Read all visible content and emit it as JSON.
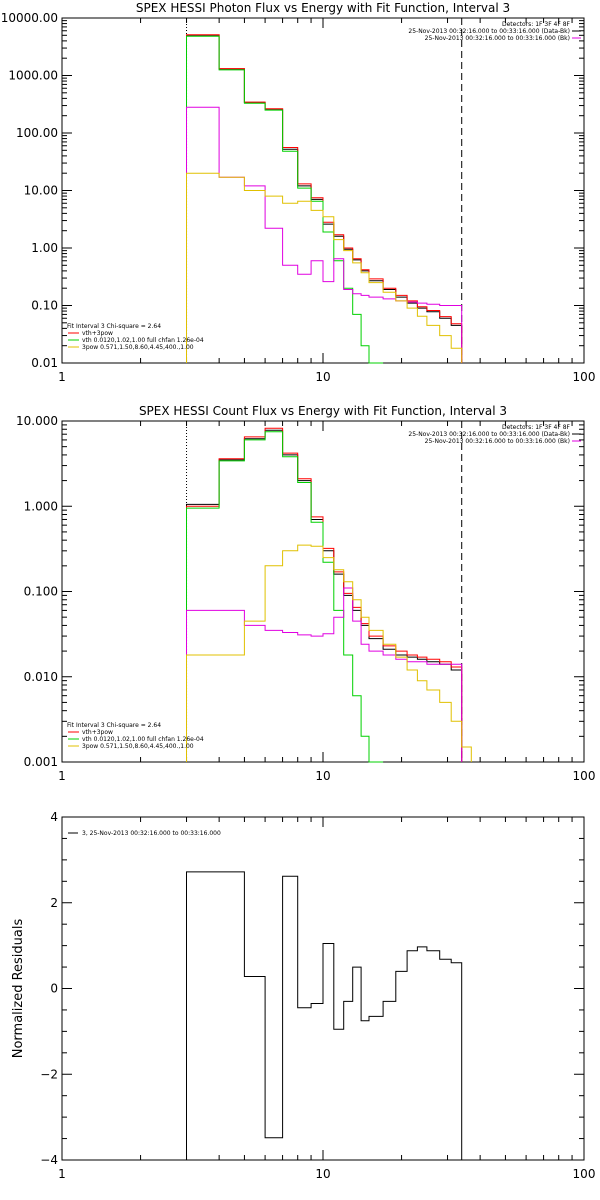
{
  "chart_data": [
    {
      "type": "line",
      "title": "SPEX HESSI Photon Flux vs Energy with Fit Function, Interval 3",
      "xscale": "log",
      "yscale": "log",
      "xlim": [
        1,
        100
      ],
      "ylim": [
        0.01,
        10000
      ],
      "x_ticklabels": [
        "1",
        "10",
        "100"
      ],
      "y_ticklabels": [
        "0.01",
        "0.10",
        "1.00",
        "10.00",
        "100.00",
        "1000.00",
        "10000.00"
      ],
      "legend_topright": [
        "Detectors: 1F 3F 4F 8F",
        "25-Nov-2013 00:32:16.000 to 00:33:16.000 (Data-Bk)",
        "25-Nov-2013 00:32:16.000 to 00:33:16.000 (Bk)"
      ],
      "legend_bottomleft": [
        "Fit Interval 3   Chi-square = 2.64",
        "vth+3pow",
        "vth 0.0120,1.02,1.00  full chfan 1.26e-04",
        "3pow 0.571,1.50,8.60,4.45,400.,1.00"
      ],
      "vlines": [
        {
          "x": 3,
          "style": "dotted"
        },
        {
          "x": 34,
          "style": "dashed"
        }
      ],
      "x_edges": [
        3,
        4,
        5,
        6,
        7,
        8,
        9,
        10,
        11,
        12,
        13,
        14,
        15,
        17,
        19,
        21,
        23,
        25,
        28,
        31,
        34
      ],
      "series": [
        {
          "color": "#000000",
          "values": [
            5000,
            1300,
            340,
            260,
            52,
            12,
            7,
            2.6,
            1.6,
            0.95,
            0.62,
            0.4,
            0.27,
            0.19,
            0.14,
            0.11,
            0.09,
            0.078,
            0.06,
            0.045
          ]
        },
        {
          "color": "#ff0000",
          "values": [
            5100,
            1320,
            345,
            265,
            56,
            13,
            7.5,
            2.8,
            1.7,
            1.0,
            0.65,
            0.42,
            0.29,
            0.2,
            0.15,
            0.12,
            0.095,
            0.082,
            0.064,
            0.048
          ]
        },
        {
          "color": "#00d000",
          "values": [
            4800,
            1250,
            330,
            250,
            48,
            11,
            6.5,
            1.9,
            0.6,
            0.2,
            0.07,
            0.02,
            0.008
          ]
        },
        {
          "color": "#e000e0",
          "values": [
            280,
            17,
            12,
            2.2,
            0.5,
            0.35,
            0.6,
            0.26,
            0.65,
            0.19,
            0.16,
            0.15,
            0.14,
            0.13,
            0.12,
            0.115,
            0.11,
            0.105,
            0.1,
            0.1
          ]
        },
        {
          "color": "#e0c000",
          "values": [
            20,
            17,
            10,
            8,
            6,
            6.5,
            4.5,
            3.5,
            1.4,
            0.9,
            0.55,
            0.37,
            0.25,
            0.17,
            0.12,
            0.09,
            0.065,
            0.045,
            0.03,
            0.018,
            0.01
          ]
        }
      ]
    },
    {
      "type": "line",
      "title": "SPEX HESSI Count Flux vs Energy with Fit Function, Interval 3",
      "xscale": "log",
      "yscale": "log",
      "xlim": [
        1,
        100
      ],
      "ylim": [
        0.001,
        10
      ],
      "x_ticklabels": [
        "1",
        "10",
        "100"
      ],
      "y_ticklabels": [
        "0.001",
        "0.010",
        "0.100",
        "1.000",
        "10.000"
      ],
      "legend_topright": [
        "Detectors: 1F 3F 4F 8F",
        "25-Nov-2013 00:32:16.000 to 00:33:16.000 (Data-Bk)",
        "25-Nov-2013 00:32:16.000 to 00:33:16.000 (Bk)"
      ],
      "legend_bottomleft": [
        "Fit Interval 3   Chi-square = 2.64",
        "vth+3pow",
        "vth 0.0120,1.02,1.00  full chfan 1.26e-04",
        "3pow 0.571,1.50,8.60,4.45,400.,1.00"
      ],
      "vlines": [
        {
          "x": 3,
          "style": "dotted"
        },
        {
          "x": 34,
          "style": "dashed"
        }
      ],
      "x_edges": [
        3,
        4,
        5,
        6,
        7,
        8,
        9,
        10,
        11,
        12,
        13,
        14,
        15,
        17,
        19,
        21,
        23,
        25,
        28,
        31,
        34,
        37
      ],
      "series": [
        {
          "color": "#000000",
          "values": [
            1.05,
            3.5,
            6.2,
            7.8,
            4.0,
            2.0,
            0.7,
            0.3,
            0.16,
            0.09,
            0.06,
            0.04,
            0.028,
            0.021,
            0.018,
            0.017,
            0.016,
            0.015,
            0.014,
            0.012
          ]
        },
        {
          "color": "#ff0000",
          "values": [
            1.0,
            3.6,
            6.5,
            8.2,
            4.2,
            2.1,
            0.75,
            0.32,
            0.17,
            0.095,
            0.065,
            0.042,
            0.03,
            0.023,
            0.02,
            0.018,
            0.017,
            0.016,
            0.015,
            0.013
          ]
        },
        {
          "color": "#00d000",
          "values": [
            0.95,
            3.4,
            6.0,
            7.5,
            3.8,
            1.9,
            0.65,
            0.22,
            0.06,
            0.018,
            0.006,
            0.002,
            0.0008
          ]
        },
        {
          "color": "#e000e0",
          "values": [
            0.06,
            0.06,
            0.04,
            0.035,
            0.033,
            0.031,
            0.03,
            0.032,
            0.05,
            0.11,
            0.045,
            0.024,
            0.02,
            0.018,
            0.016,
            0.015,
            0.015,
            0.014,
            0.014,
            0.014
          ]
        },
        {
          "color": "#e0c000",
          "values": [
            0.018,
            0.018,
            0.045,
            0.2,
            0.3,
            0.35,
            0.34,
            0.25,
            0.18,
            0.13,
            0.08,
            0.05,
            0.035,
            0.024,
            0.017,
            0.012,
            0.009,
            0.007,
            0.005,
            0.003,
            0.0015
          ]
        }
      ]
    },
    {
      "type": "line",
      "xscale": "log",
      "xlim": [
        1,
        100
      ],
      "ylim": [
        -4,
        4
      ],
      "ylabel": "Normalized Residuals",
      "x_ticklabels": [
        "1",
        "10",
        "100"
      ],
      "y_ticklabels": [
        "−4",
        "−2",
        "0",
        "2",
        "4"
      ],
      "legend": [
        "3, 25-Nov-2013 00:32:16.000 to 00:33:16.000"
      ],
      "x_edges": [
        3,
        4,
        5,
        6,
        7,
        8,
        9,
        10,
        11,
        12,
        13,
        14,
        15,
        17,
        19,
        21,
        23,
        25,
        28,
        31,
        34
      ],
      "series": [
        {
          "color": "#000000",
          "values": [
            2.72,
            2.72,
            0.28,
            -3.48,
            2.62,
            -0.45,
            -0.35,
            1.05,
            -0.95,
            -0.3,
            0.5,
            -0.75,
            -0.65,
            -0.3,
            0.4,
            0.88,
            0.97,
            0.88,
            0.68,
            0.6
          ]
        }
      ]
    }
  ]
}
